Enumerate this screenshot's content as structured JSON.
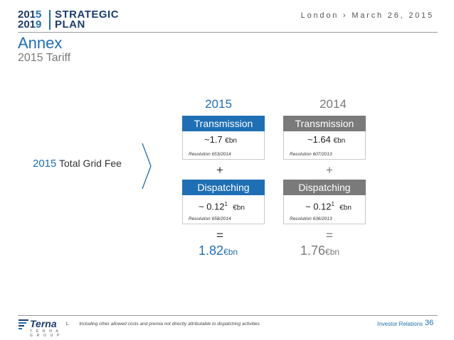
{
  "header": {
    "logo": {
      "year_top": [
        "201",
        "5"
      ],
      "year_bottom": [
        "201",
        "9"
      ],
      "word_top": "STRATEGIC",
      "word_bottom": "PLAN"
    },
    "place_date": "London › March 26, 2015",
    "title": "Annex",
    "subtitle": "2015 Tariff"
  },
  "left_label": {
    "year": "2015",
    "text": "Total Grid Fee"
  },
  "columns": [
    {
      "year": "2015",
      "transmission": {
        "label": "Transmission",
        "value": "~1.7",
        "unit": "€bn",
        "resolution": "Resolution 653/2014"
      },
      "plus": "+",
      "dispatching": {
        "label": "Dispatching",
        "value": "~ 0.12",
        "sup": "1",
        "unit": "€bn",
        "resolution": "Resolution 658/2014"
      },
      "equals": "=",
      "total": {
        "value": "1.82",
        "unit": "€bn"
      }
    },
    {
      "year": "2014",
      "transmission": {
        "label": "Transmission",
        "value": "~1.64",
        "unit": "€bn",
        "resolution": "Resolution 607/2013"
      },
      "plus": "+",
      "dispatching": {
        "label": "Dispatching",
        "value": "~ 0.12",
        "sup": "1",
        "unit": "€bn",
        "resolution": "Resolution 636/2013"
      },
      "equals": "=",
      "total": {
        "value": "1.76",
        "unit": "€bn"
      }
    }
  ],
  "footer": {
    "brand": "Terna",
    "brand_sub": "T E R N A  G R O U P",
    "footnote_num": "1.",
    "footnote": "Including other allowed costs and premia not directly attributable to dispatching activities",
    "investor_relations": "Investor Relations",
    "page": "36"
  },
  "colors": {
    "accent": "#1f6fb5",
    "dark_blue": "#1b3d6e",
    "grey": "#7a7a7a"
  }
}
